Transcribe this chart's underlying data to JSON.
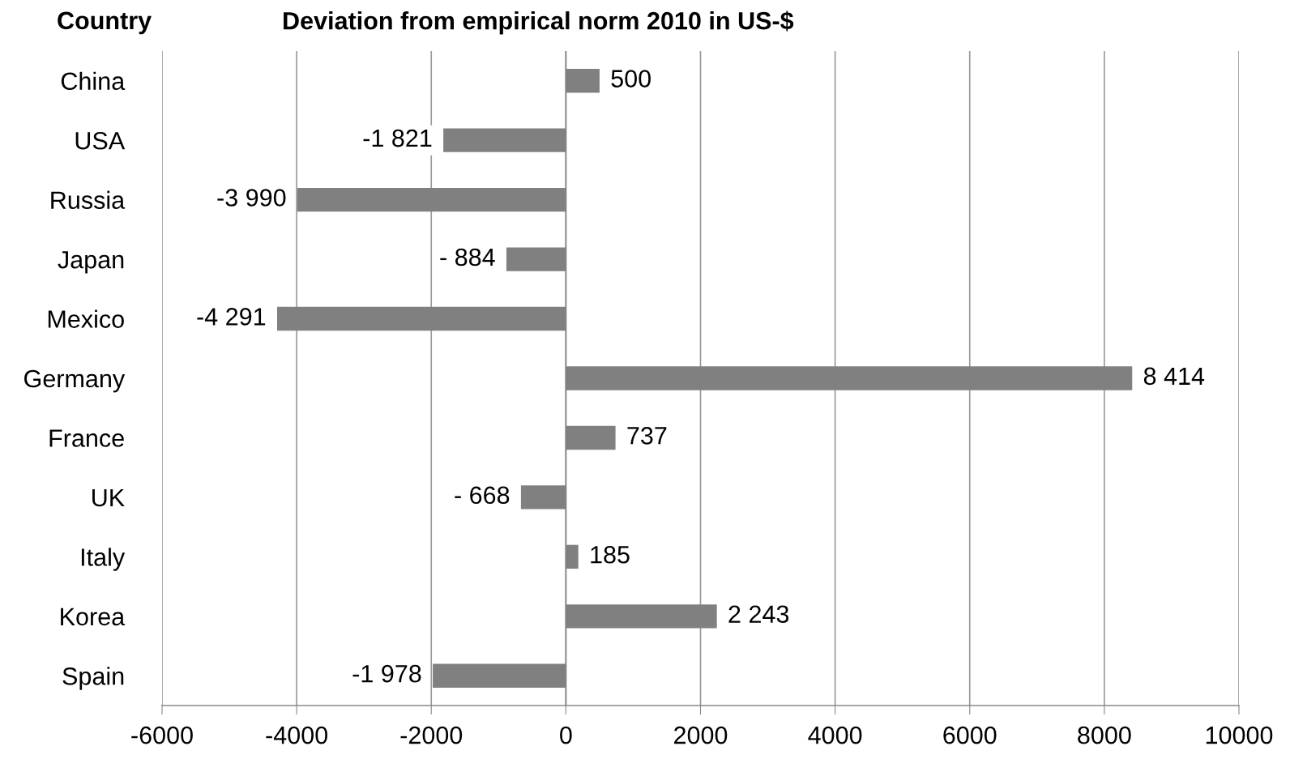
{
  "chart_data": {
    "type": "bar",
    "orientation": "horizontal",
    "title": "Deviation from empirical norm 2010 in US-$",
    "ylabel": "Country",
    "categories": [
      "China",
      "USA",
      "Russia",
      "Japan",
      "Mexico",
      "Germany",
      "France",
      "UK",
      "Italy",
      "Korea",
      "Spain"
    ],
    "values": [
      500,
      -1821,
      -3990,
      -884,
      -4291,
      8414,
      737,
      -668,
      185,
      2243,
      -1978
    ],
    "value_labels": [
      "500",
      "-1 821",
      "-3 990",
      "- 884",
      "-4 291",
      "8 414",
      "737",
      "- 668",
      "185",
      "2 243",
      "-1 978"
    ],
    "color": "#808080",
    "xlim": [
      -6000,
      10000
    ],
    "xticks": [
      -6000,
      -4000,
      -2000,
      0,
      2000,
      4000,
      6000,
      8000,
      10000
    ],
    "grid": "x"
  }
}
